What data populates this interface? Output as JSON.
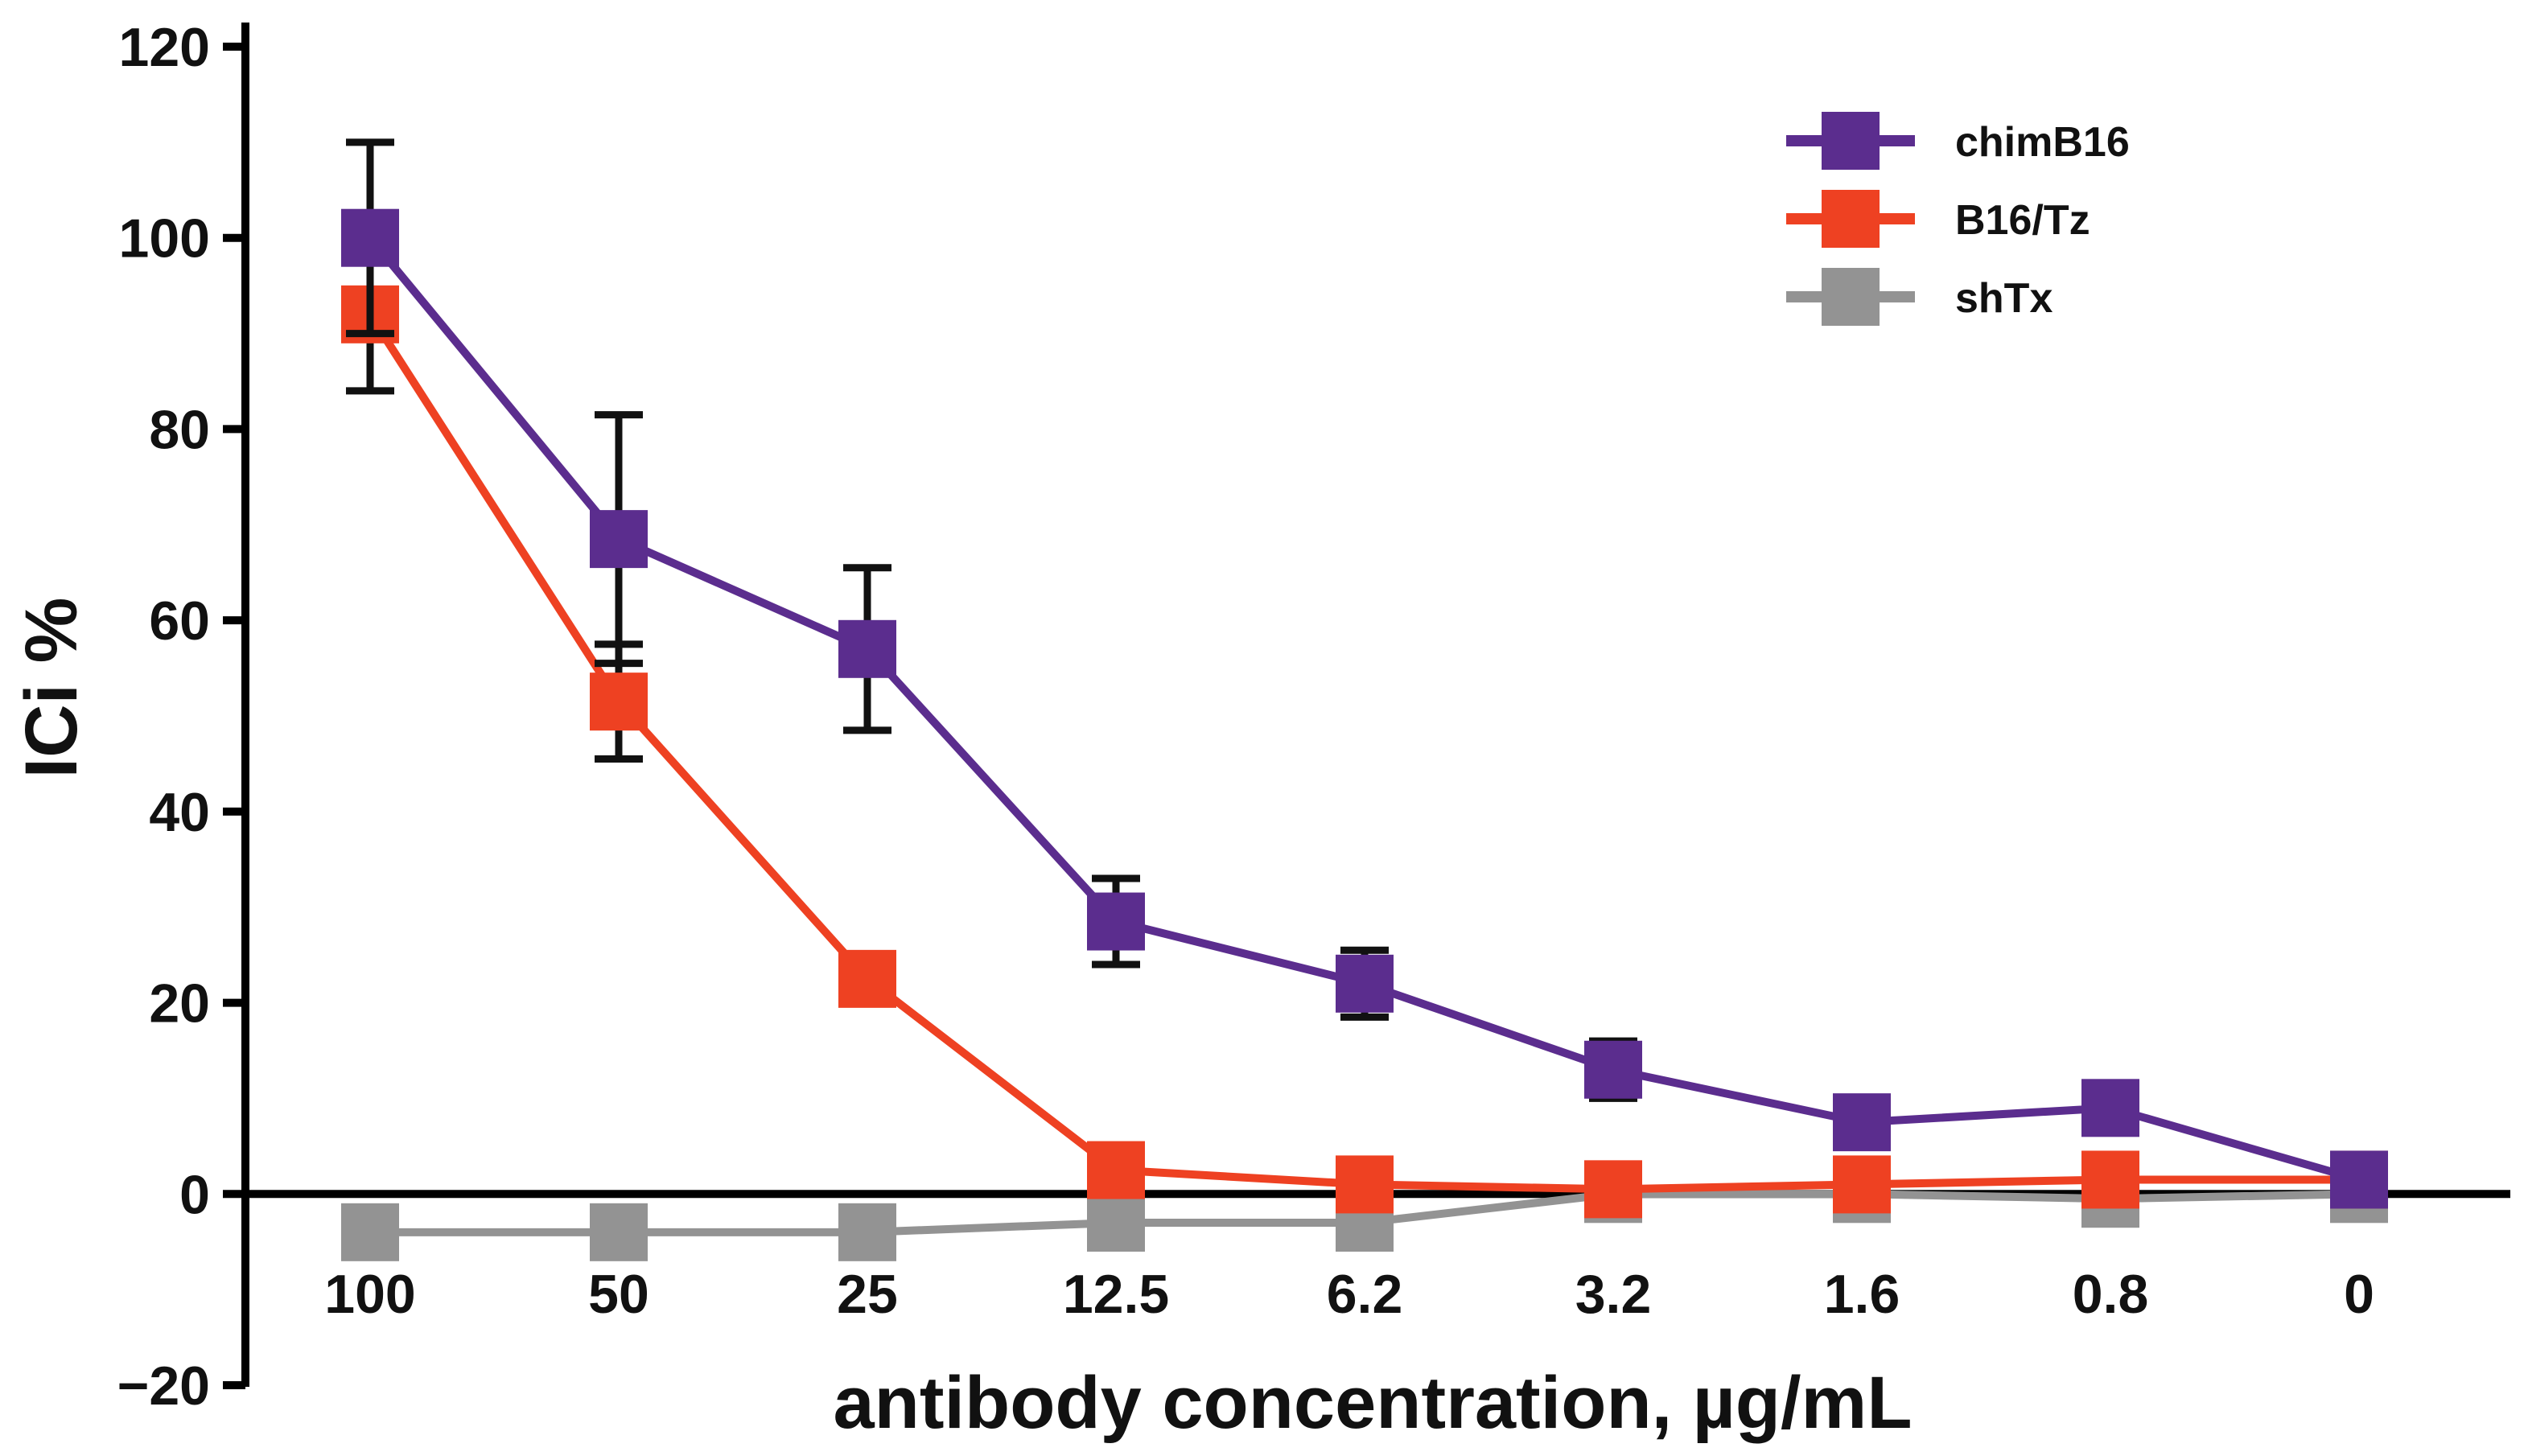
{
  "chart_data": {
    "type": "line",
    "title": "",
    "xlabel": "antibody concentration, µg/mL",
    "ylabel": "ICi %",
    "categories": [
      "100",
      "50",
      "25",
      "12.5",
      "6.2",
      "3.2",
      "1.6",
      "0.8",
      "0"
    ],
    "ylim": [
      -20,
      120
    ],
    "yticks": [
      -20,
      0,
      20,
      40,
      60,
      80,
      100,
      120
    ],
    "ytick_labels": [
      "−20",
      "0",
      "20",
      "40",
      "60",
      "80",
      "100",
      "120"
    ],
    "grid": false,
    "legend_position": "top-right",
    "series": [
      {
        "name": "chimB16",
        "color": "#5b2d8e",
        "values": [
          100,
          68.5,
          57,
          28.5,
          22,
          13,
          7.5,
          9,
          1.5
        ],
        "errors": [
          10,
          13,
          8.5,
          4.5,
          3.5,
          3,
          2,
          2,
          0
        ]
      },
      {
        "name": "B16/Tz",
        "color": "#ee4122",
        "values": [
          92,
          51.5,
          22.5,
          2.5,
          1,
          0.5,
          1,
          1.5,
          1.5
        ],
        "errors": [
          8,
          6,
          0,
          0,
          0,
          0,
          0,
          0,
          0
        ]
      },
      {
        "name": "shTx",
        "color": "#939393",
        "values": [
          -4,
          -4,
          -4,
          -3,
          -3,
          0,
          0,
          -0.5,
          0
        ],
        "errors": [
          0,
          0,
          0,
          0,
          0,
          0,
          0,
          0,
          0
        ]
      }
    ]
  }
}
